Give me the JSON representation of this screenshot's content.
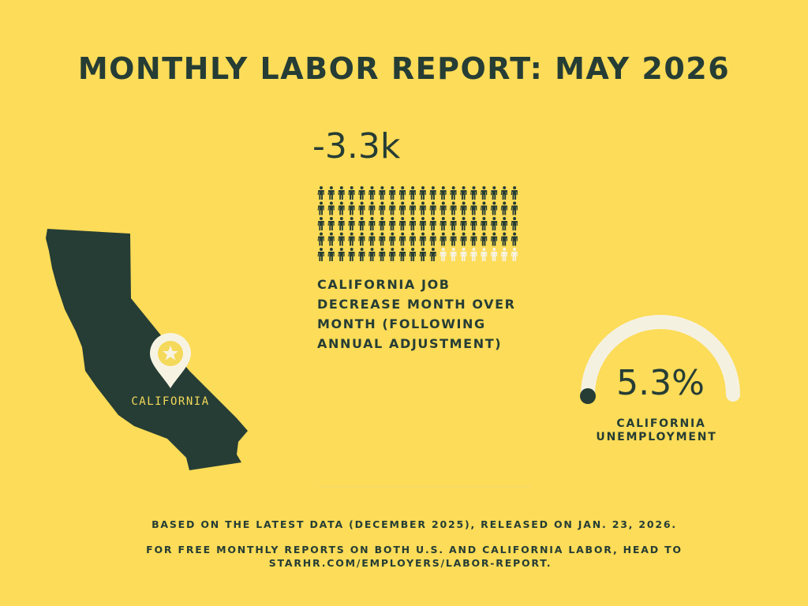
{
  "header": {
    "title": "MONTHLY LABOR REPORT: MAY 2026"
  },
  "job_change": {
    "value": "-3.3k",
    "pictogram": {
      "filled": 92,
      "total": 100
    },
    "description": [
      "CALIFORNIA JOB",
      "DECREASE MONTH OVER",
      "MONTH (FOLLOWING",
      "ANNUAL ADJUSTMENT)"
    ]
  },
  "map": {
    "label": "CALIFORNIA"
  },
  "unemployment": {
    "value": "5.3%",
    "label": [
      "CALIFORNIA",
      "UNEMPLOYMENT"
    ]
  },
  "footer": {
    "source": "BASED ON THE LATEST DATA (DECEMBER 2025), RELEASED ON JAN. 23, 2026.",
    "cta": [
      "FOR FREE MONTHLY REPORTS ON BOTH U.S. AND CALIFORNIA LABOR, HEAD TO",
      "STARHR.COM/EMPLOYERS/LABOR-REPORT."
    ]
  }
}
